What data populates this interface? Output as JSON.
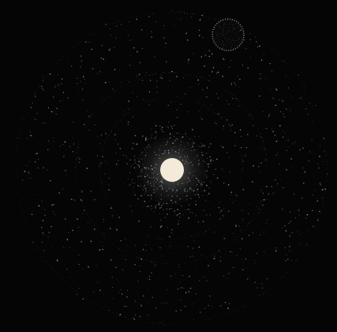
{
  "image": {
    "background_color": "#050505",
    "orbit_color": "#f2f2f2",
    "star_color": "#f3ead9",
    "planet_color": "#e8e8e8",
    "dust_color": "#e6e6e6"
  }
}
